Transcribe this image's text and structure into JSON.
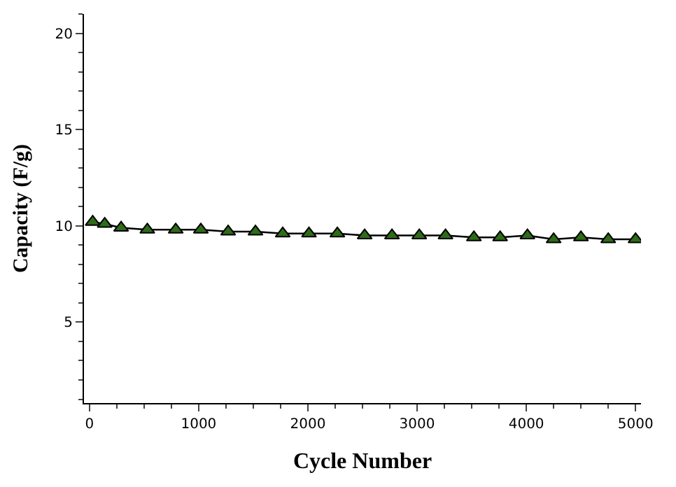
{
  "chart_data": {
    "type": "line",
    "xlabel": "Cycle Number",
    "ylabel": "Capacity (F/g)",
    "x": [
      30,
      140,
      290,
      530,
      790,
      1020,
      1270,
      1520,
      1770,
      2010,
      2270,
      2520,
      2770,
      3020,
      3260,
      3520,
      3760,
      4010,
      4250,
      4500,
      4750,
      5000
    ],
    "series": [
      {
        "color": "#2e6b1a",
        "values": [
          10.2,
          10.1,
          9.9,
          9.8,
          9.8,
          9.8,
          9.7,
          9.7,
          9.6,
          9.6,
          9.6,
          9.5,
          9.5,
          9.5,
          9.5,
          9.4,
          9.4,
          9.5,
          9.3,
          9.4,
          9.3,
          9.3
        ]
      }
    ],
    "xlim": [
      -50,
      5050
    ],
    "ylim": [
      0.8,
      21
    ],
    "xticks": [
      0,
      1000,
      2000,
      3000,
      4000,
      5000
    ],
    "yticks": [
      5,
      10,
      15,
      20
    ],
    "marker": "triangle",
    "line_style": "solid",
    "legend": false
  }
}
